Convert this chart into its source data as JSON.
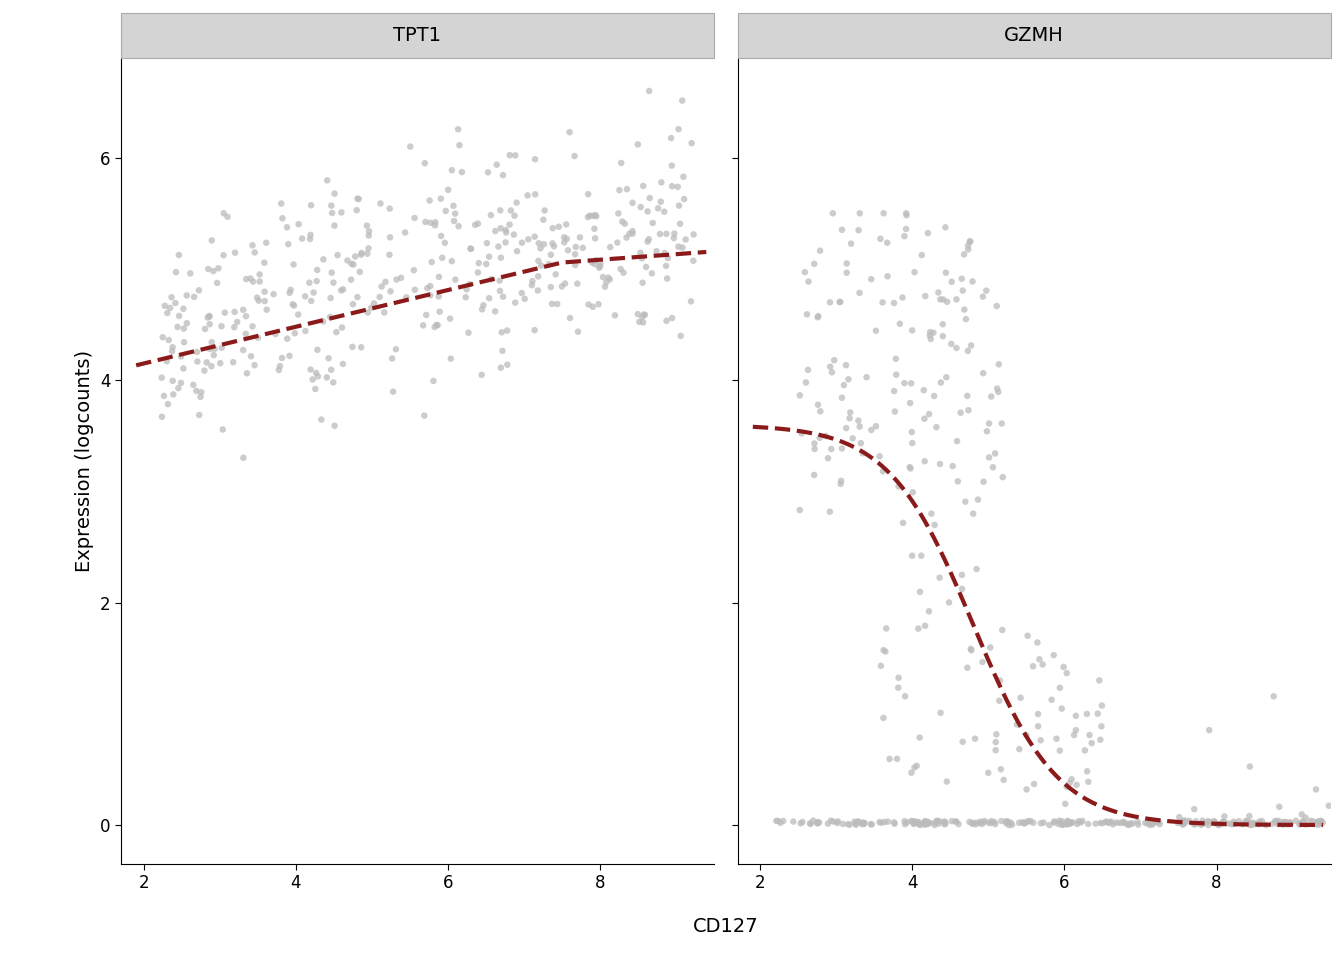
{
  "panel_titles": [
    "TPT1",
    "GZMH"
  ],
  "xlabel": "CD127",
  "ylabel": "Expression (logcounts)",
  "xlim": [
    1.7,
    9.5
  ],
  "ylim": [
    -0.35,
    6.9
  ],
  "xticks": [
    2,
    4,
    6,
    8
  ],
  "yticks": [
    0,
    2,
    4,
    6
  ],
  "scatter_color": "#bbbbbb",
  "scatter_alpha": 0.75,
  "scatter_size": 22,
  "trend_color": "#8b1a1a",
  "trend_linewidth": 3.0,
  "trend_linestyle": "--",
  "strip_bg": "#d4d4d4",
  "plot_bg": "#ffffff",
  "outer_bg": "#ffffff",
  "title_fontsize": 14,
  "label_fontsize": 14,
  "tick_fontsize": 12,
  "seed_tpt1": 42,
  "seed_gzmh": 99
}
